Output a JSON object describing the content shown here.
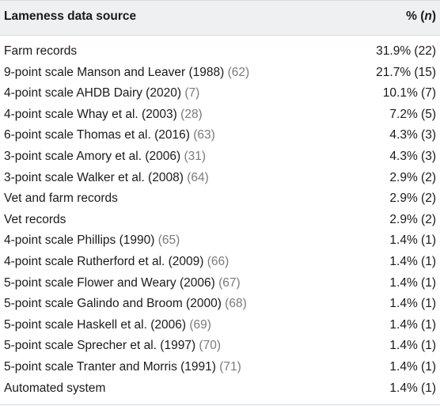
{
  "header": {
    "col1": "Lameness data source",
    "col2_pct": "%",
    "col2_n": "n"
  },
  "rows": [
    {
      "label": "Farm records",
      "ref": "",
      "value": "31.9% (22)"
    },
    {
      "label": "9-point scale Manson and Leaver (1988)",
      "ref": "(62)",
      "value": "21.7% (15)"
    },
    {
      "label": "4-point scale AHDB Dairy (2020)",
      "ref": "(7)",
      "value": "10.1% (7)"
    },
    {
      "label": "4-point scale Whay et al. (2003)",
      "ref": "(28)",
      "value": "7.2% (5)"
    },
    {
      "label": "6-point scale Thomas et al. (2016)",
      "ref": "(63)",
      "value": "4.3% (3)"
    },
    {
      "label": "3-point scale Amory et al. (2006)",
      "ref": "(31)",
      "value": "4.3% (3)"
    },
    {
      "label": "3-point scale Walker et al. (2008)",
      "ref": "(64)",
      "value": "2.9% (2)"
    },
    {
      "label": "Vet and farm records",
      "ref": "",
      "value": "2.9% (2)"
    },
    {
      "label": "Vet records",
      "ref": "",
      "value": "2.9% (2)"
    },
    {
      "label": "4-point scale Phillips (1990)",
      "ref": "(65)",
      "value": "1.4% (1)"
    },
    {
      "label": "4-point scale Rutherford et al. (2009)",
      "ref": "(66)",
      "value": "1.4% (1)"
    },
    {
      "label": "5-point scale Flower and Weary (2006)",
      "ref": "(67)",
      "value": "1.4% (1)"
    },
    {
      "label": "5-point scale Galindo and Broom (2000)",
      "ref": "(68)",
      "value": "1.4% (1)"
    },
    {
      "label": "5-point scale Haskell et al. (2006)",
      "ref": "(69)",
      "value": "1.4% (1)"
    },
    {
      "label": "5-point scale Sprecher et al. (1997)",
      "ref": "(70)",
      "value": "1.4% (1)"
    },
    {
      "label": "5-point scale Tranter and Morris (1991)",
      "ref": "(71)",
      "value": "1.4% (1)"
    },
    {
      "label": "Automated system",
      "ref": "",
      "value": "1.4% (1)"
    }
  ]
}
